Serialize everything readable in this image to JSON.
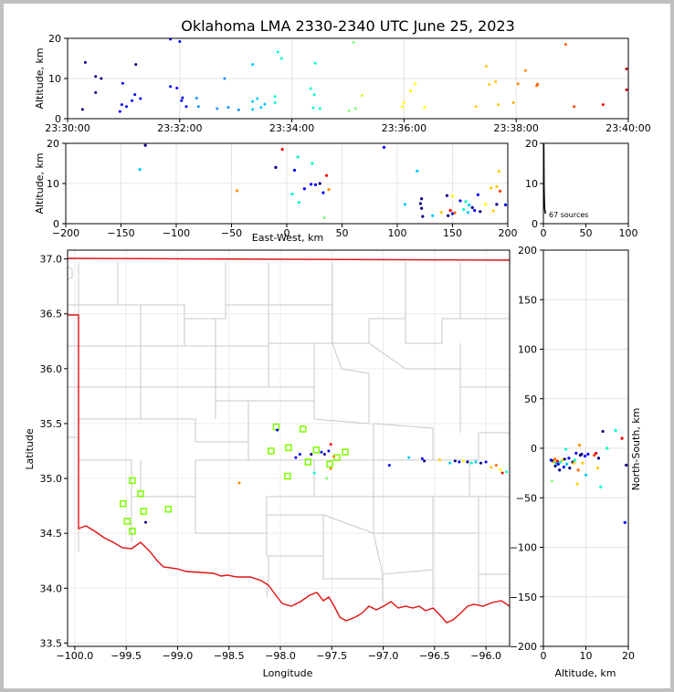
{
  "chart_data": [
    {
      "panel": "altitude-vs-time",
      "type": "scatter",
      "title": "Oklahoma LMA 2330-2340 UTC June 25, 2023",
      "xlabel": "",
      "ylabel": "Altitude, km",
      "xlim": [
        "23:30:00",
        "23:40:00"
      ],
      "ylim": [
        0,
        20
      ],
      "xticks": [
        "23:30:00",
        "23:32:00",
        "23:34:00",
        "23:36:00",
        "23:38:00",
        "23:40:00"
      ],
      "yticks": [
        "0",
        "10",
        "20"
      ],
      "grid": true,
      "points": [
        [
          "23:30:19",
          14.0,
          "#000080"
        ],
        [
          "23:30:30",
          10.5,
          "#000080"
        ],
        [
          "23:30:36",
          10.0,
          "#000080"
        ],
        [
          "23:30:30",
          6.5,
          "#000080"
        ],
        [
          "23:30:16",
          2.3,
          "#000080"
        ],
        [
          "23:30:56",
          1.8,
          "#0000ff"
        ],
        [
          "23:30:58",
          3.5,
          "#0000ff"
        ],
        [
          "23:31:03",
          3.0,
          "#0000ff"
        ],
        [
          "23:31:09",
          4.5,
          "#0000ff"
        ],
        [
          "23:31:12",
          6.0,
          "#0000ff"
        ],
        [
          "23:31:13",
          13.5,
          "#000080"
        ],
        [
          "23:30:59",
          8.8,
          "#0000ff"
        ],
        [
          "23:31:18",
          5.0,
          "#0000ff"
        ],
        [
          "23:31:50",
          19.8,
          "#0000ff"
        ],
        [
          "23:31:50",
          8.0,
          "#0000ff"
        ],
        [
          "23:31:57",
          7.6,
          "#0000ff"
        ],
        [
          "23:32:00",
          19.2,
          "#0000ff"
        ],
        [
          "23:32:02",
          4.5,
          "#0000ff"
        ],
        [
          "23:32:03",
          5.2,
          "#0000ff"
        ],
        [
          "23:32:07",
          3.0,
          "#0000ff"
        ],
        [
          "23:32:18",
          5.1,
          "#1e90ff"
        ],
        [
          "23:32:20",
          3.0,
          "#1e90ff"
        ],
        [
          "23:32:40",
          2.5,
          "#1e90ff"
        ],
        [
          "23:32:48",
          10.0,
          "#1e90ff"
        ],
        [
          "23:32:52",
          2.8,
          "#1e90ff"
        ],
        [
          "23:33:03",
          2.2,
          "#1e90ff"
        ],
        [
          "23:33:18",
          13.5,
          "#00ccff"
        ],
        [
          "23:33:18",
          2.3,
          "#00ccff"
        ],
        [
          "23:33:18",
          4.3,
          "#00ccff"
        ],
        [
          "23:33:23",
          5.0,
          "#00ccff"
        ],
        [
          "23:33:27",
          2.8,
          "#00ccff"
        ],
        [
          "23:33:31",
          3.6,
          "#00ccff"
        ],
        [
          "23:33:42",
          4.0,
          "#00ffcc"
        ],
        [
          "23:33:42",
          5.5,
          "#00ffcc"
        ],
        [
          "23:33:45",
          16.6,
          "#00ffcc"
        ],
        [
          "23:33:49",
          15.0,
          "#00ffcc"
        ],
        [
          "23:34:20",
          7.5,
          "#00ffcc"
        ],
        [
          "23:34:23",
          2.7,
          "#00ffcc"
        ],
        [
          "23:34:24",
          6.0,
          "#00ffcc"
        ],
        [
          "23:34:25",
          13.8,
          "#00ffcc"
        ],
        [
          "23:34:30",
          2.5,
          "#00ffcc"
        ],
        [
          "23:35:06",
          19.0,
          "#80ff80"
        ],
        [
          "23:35:01",
          2.0,
          "#80ff80"
        ],
        [
          "23:35:08",
          2.5,
          "#80ff80"
        ],
        [
          "23:35:15",
          5.8,
          "#ccff33"
        ],
        [
          "23:35:58",
          3.0,
          "#ffff00"
        ],
        [
          "23:36:00",
          4.0,
          "#ffff00"
        ],
        [
          "23:36:07",
          6.9,
          "#ffff00"
        ],
        [
          "23:36:12",
          8.7,
          "#ffff00"
        ],
        [
          "23:36:22",
          2.8,
          "#ffff00"
        ],
        [
          "23:37:17",
          3.0,
          "#ffcc00"
        ],
        [
          "23:37:28",
          13.0,
          "#ffcc00"
        ],
        [
          "23:37:31",
          8.5,
          "#ffcc00"
        ],
        [
          "23:37:38",
          9.2,
          "#ffcc00"
        ],
        [
          "23:37:41",
          3.5,
          "#ffcc00"
        ],
        [
          "23:37:57",
          4.0,
          "#ffaa00"
        ],
        [
          "23:38:02",
          8.7,
          "#ff8c00"
        ],
        [
          "23:38:10",
          12.0,
          "#ff8c00"
        ],
        [
          "23:38:22",
          8.2,
          "#ff6400"
        ],
        [
          "23:38:23",
          8.6,
          "#ff6400"
        ],
        [
          "23:38:53",
          18.5,
          "#ff6400"
        ],
        [
          "23:39:02",
          3.0,
          "#ff3c00"
        ],
        [
          "23:39:33",
          3.5,
          "#ff0000"
        ],
        [
          "23:39:58",
          12.4,
          "#cc0000"
        ],
        [
          "23:39:58",
          7.2,
          "#cc0000"
        ]
      ]
    },
    {
      "panel": "altitude-vs-east-west",
      "type": "scatter",
      "xlabel": "East-West, km",
      "ylabel": "Altitude, km",
      "xlim": [
        -200,
        200
      ],
      "ylim": [
        0,
        20
      ],
      "xticks": [
        "−200",
        "−150",
        "−100",
        "−50",
        "0",
        "50",
        "100",
        "150",
        "200"
      ],
      "yticks": [
        "0",
        "10",
        "20"
      ],
      "grid": true,
      "points": [
        [
          -128,
          19.5,
          "#000080"
        ],
        [
          -133,
          13.5,
          "#00ccff"
        ],
        [
          -10,
          14.0,
          "#000080"
        ],
        [
          7,
          13.3,
          "#0000ff"
        ],
        [
          -4,
          18.5,
          "#ff0000"
        ],
        [
          10,
          16.6,
          "#00ffcc"
        ],
        [
          23,
          15.0,
          "#00ffcc"
        ],
        [
          16,
          8.7,
          "#0000ff"
        ],
        [
          22,
          9.8,
          "#0000ff"
        ],
        [
          26,
          9.7,
          "#0000ff"
        ],
        [
          30,
          10.0,
          "#000080"
        ],
        [
          33,
          7.7,
          "#0000ff"
        ],
        [
          36,
          12.0,
          "#ff0000"
        ],
        [
          38,
          8.5,
          "#ff8c00"
        ],
        [
          5,
          7.4,
          "#00ffcc"
        ],
        [
          11,
          5.3,
          "#00ffcc"
        ],
        [
          -45,
          8.2,
          "#ff8c00"
        ],
        [
          88,
          19.0,
          "#0000ff"
        ],
        [
          118,
          13.1,
          "#00ccff"
        ],
        [
          122,
          6.2,
          "#000080"
        ],
        [
          121,
          5.0,
          "#000080"
        ],
        [
          122,
          3.8,
          "#000080"
        ],
        [
          123,
          1.8,
          "#000080"
        ],
        [
          107,
          4.8,
          "#00ccff"
        ],
        [
          34,
          1.5,
          "#80ff80"
        ],
        [
          192,
          13.0,
          "#ffcc00"
        ],
        [
          145,
          7.0,
          "#000080"
        ],
        [
          150,
          6.9,
          "#ffff00"
        ],
        [
          157,
          5.7,
          "#0000ff"
        ],
        [
          162,
          5.5,
          "#00ffcc"
        ],
        [
          165,
          4.6,
          "#00ccff"
        ],
        [
          168,
          4.0,
          "#000080"
        ],
        [
          173,
          7.2,
          "#0000ff"
        ],
        [
          180,
          4.8,
          "#ffff00"
        ],
        [
          185,
          8.9,
          "#ffcc00"
        ],
        [
          190,
          9.2,
          "#ffcc00"
        ],
        [
          193,
          8.1,
          "#ff3c00"
        ],
        [
          187,
          3.2,
          "#ffcc00"
        ],
        [
          190,
          4.8,
          "#000080"
        ],
        [
          198,
          4.7,
          "#0000ff"
        ],
        [
          146,
          2.0,
          "#000080"
        ],
        [
          148,
          3.3,
          "#ff0000"
        ],
        [
          150,
          2.5,
          "#0000ff"
        ],
        [
          152,
          2.7,
          "#ff6400"
        ],
        [
          140,
          2.8,
          "#ffcc00"
        ],
        [
          132,
          2.0,
          "#00ccff"
        ],
        [
          160,
          3.5,
          "#00ffcc"
        ],
        [
          164,
          2.8,
          "#00ccff"
        ],
        [
          170,
          3.3,
          "#0000ff"
        ],
        [
          175,
          3.0,
          "#000080"
        ]
      ]
    },
    {
      "panel": "histogram",
      "type": "line",
      "xlim": [
        0,
        100
      ],
      "ylim": [
        0,
        20
      ],
      "xticks": [
        "0",
        "50",
        "100"
      ],
      "yticks": [
        "0",
        "10",
        "20"
      ],
      "annotation": "67 sources",
      "x": [
        0.4,
        0.8,
        1.2,
        1.6,
        2.0,
        2.4
      ],
      "y": [
        20.0,
        9.0,
        5.0,
        3.5,
        3.0,
        2.5
      ]
    },
    {
      "panel": "plan-view",
      "type": "scatter",
      "xlabel": "Longitude",
      "ylabel": "Latitude",
      "xlim": [
        -100.07,
        -95.77
      ],
      "ylim": [
        33.47,
        37.08
      ],
      "xticks": [
        "−100.0",
        "−99.5",
        "−99.0",
        "−98.5",
        "−98.0",
        "−97.5",
        "−97.0",
        "−96.5",
        "−96.0"
      ],
      "yticks": [
        "33.5",
        "34.0",
        "34.5",
        "35.0",
        "35.5",
        "36.0",
        "36.5",
        "37.0"
      ],
      "grid": true,
      "stations": [
        [
          -98.04,
          35.47
        ],
        [
          -97.78,
          35.45
        ],
        [
          -98.09,
          35.25
        ],
        [
          -97.92,
          35.28
        ],
        [
          -97.65,
          35.26
        ],
        [
          -97.37,
          35.24
        ],
        [
          -97.45,
          35.19
        ],
        [
          -97.73,
          35.15
        ],
        [
          -97.52,
          35.13
        ],
        [
          -97.93,
          35.02
        ],
        [
          -99.44,
          34.98
        ],
        [
          -99.36,
          34.86
        ],
        [
          -99.53,
          34.77
        ],
        [
          -99.33,
          34.7
        ],
        [
          -99.09,
          34.72
        ],
        [
          -99.49,
          34.61
        ],
        [
          -99.44,
          34.52
        ]
      ],
      "points": [
        [
          -98.4,
          34.96,
          "#ff8c00"
        ],
        [
          -98.03,
          35.44,
          "#0000ff"
        ],
        [
          -97.85,
          35.19,
          "#0000ff"
        ],
        [
          -97.81,
          35.22,
          "#0000ff"
        ],
        [
          -97.7,
          35.22,
          "#000080"
        ],
        [
          -97.6,
          35.24,
          "#0000ff"
        ],
        [
          -97.57,
          35.22,
          "#000080"
        ],
        [
          -97.53,
          35.25,
          "#0000ff"
        ],
        [
          -97.51,
          35.31,
          "#ff0000"
        ],
        [
          -97.48,
          35.2,
          "#ff8c00"
        ],
        [
          -97.67,
          35.05,
          "#00ffcc"
        ],
        [
          -97.55,
          35.0,
          "#80ff80"
        ],
        [
          -97.51,
          35.09,
          "#ff8c00"
        ],
        [
          -96.94,
          35.12,
          "#0000ff"
        ],
        [
          -96.75,
          35.19,
          "#00ccff"
        ],
        [
          -96.62,
          35.18,
          "#0000ff"
        ],
        [
          -96.6,
          35.16,
          "#000080"
        ],
        [
          -96.45,
          35.17,
          "#ffcc00"
        ],
        [
          -96.35,
          35.14,
          "#00ccff"
        ],
        [
          -96.3,
          35.16,
          "#000080"
        ],
        [
          -96.26,
          35.15,
          "#0000ff"
        ],
        [
          -96.22,
          35.16,
          "#ffff00"
        ],
        [
          -96.18,
          35.15,
          "#000080"
        ],
        [
          -96.14,
          35.14,
          "#00ffcc"
        ],
        [
          -96.1,
          35.15,
          "#00ccff"
        ],
        [
          -96.05,
          35.14,
          "#000080"
        ],
        [
          -96.0,
          35.15,
          "#0000ff"
        ],
        [
          -95.95,
          35.1,
          "#ffcc00"
        ],
        [
          -95.9,
          35.12,
          "#ff6400"
        ],
        [
          -95.86,
          35.08,
          "#ffff00"
        ],
        [
          -95.84,
          35.05,
          "#ff0000"
        ],
        [
          -95.8,
          35.06,
          "#00ffcc"
        ],
        [
          -99.31,
          34.6,
          "#000080"
        ]
      ]
    },
    {
      "panel": "north-south-vs-altitude",
      "type": "scatter",
      "xlabel": "Altitude, km",
      "ylabel": "North-South, km",
      "xlim": [
        0,
        20
      ],
      "ylim": [
        -200,
        200
      ],
      "xticks": [
        "0",
        "10",
        "20"
      ],
      "yticks": [
        "−200",
        "−150",
        "−100",
        "−50",
        "0",
        "50",
        "100",
        "150",
        "200"
      ],
      "grid": true,
      "points": [
        [
          14.0,
          17,
          "#000080"
        ],
        [
          17.0,
          18,
          "#00ffcc"
        ],
        [
          18.5,
          10,
          "#ff0000"
        ],
        [
          19.5,
          -17,
          "#000080"
        ],
        [
          19.2,
          -75,
          "#0000ff"
        ],
        [
          8.5,
          3,
          "#ff8c00"
        ],
        [
          13.5,
          -39,
          "#00ffcc"
        ],
        [
          2.0,
          -33,
          "#80ff80"
        ],
        [
          1.8,
          -12,
          "#0000ff"
        ],
        [
          2.2,
          -13,
          "#000080"
        ],
        [
          2.5,
          -14,
          "#ffcc00"
        ],
        [
          2.7,
          -11,
          "#ff6400"
        ],
        [
          3.0,
          -15,
          "#00ccff"
        ],
        [
          3.3,
          -13,
          "#ff0000"
        ],
        [
          3.5,
          -16,
          "#0000ff"
        ],
        [
          2.8,
          -18,
          "#000080"
        ],
        [
          4.0,
          -14,
          "#00ffcc"
        ],
        [
          4.5,
          -12,
          "#ffcc00"
        ],
        [
          4.8,
          -19,
          "#0000ff"
        ],
        [
          5.0,
          -11,
          "#000080"
        ],
        [
          5.5,
          -16,
          "#00ccff"
        ],
        [
          6.0,
          -10,
          "#0000ff"
        ],
        [
          6.9,
          -14,
          "#000080"
        ],
        [
          7.2,
          -15,
          "#ffcc00"
        ],
        [
          7.7,
          -5,
          "#0000ff"
        ],
        [
          8.2,
          -22,
          "#ff6400"
        ],
        [
          8.7,
          -7,
          "#000080"
        ],
        [
          8.0,
          -36,
          "#ffcc00"
        ],
        [
          9.2,
          -15,
          "#ffcc00"
        ],
        [
          9.8,
          -8,
          "#0000ff"
        ],
        [
          10.0,
          -27,
          "#00ccff"
        ],
        [
          12.0,
          -7,
          "#ff3c00"
        ],
        [
          12.4,
          -5,
          "#cc0000"
        ],
        [
          13.0,
          -10,
          "#000080"
        ],
        [
          12.8,
          -20,
          "#ffcc00"
        ],
        [
          15.0,
          0,
          "#00ffcc"
        ],
        [
          5.3,
          -1,
          "#00ffcc"
        ],
        [
          3.8,
          -22,
          "#000080"
        ],
        [
          6.2,
          -20,
          "#000080"
        ],
        [
          7.4,
          -12,
          "#00ffcc"
        ],
        [
          9.0,
          -6,
          "#000080"
        ],
        [
          10.5,
          -6,
          "#0000ff"
        ]
      ]
    }
  ]
}
